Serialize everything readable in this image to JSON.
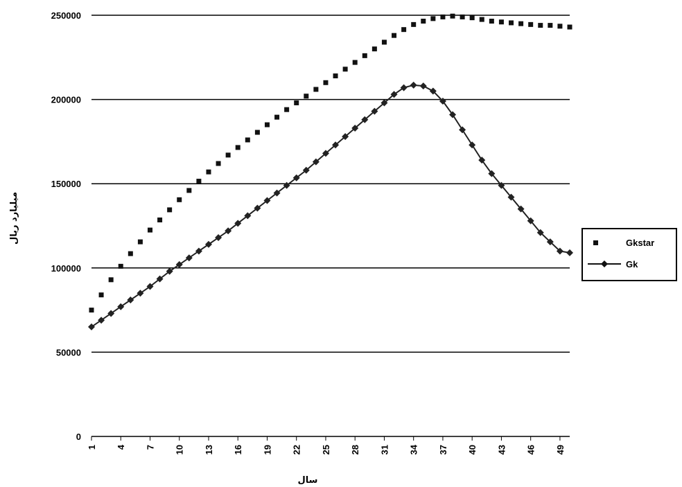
{
  "chart_data": {
    "type": "line",
    "title": "",
    "xlabel": "سال",
    "ylabel": "میلیارد ریال",
    "ylim": [
      0,
      250000
    ],
    "yticks": [
      0,
      50000,
      100000,
      150000,
      200000,
      250000
    ],
    "ytick_labels": [
      "0",
      "50000",
      "100000",
      "150000",
      "200000",
      "250000"
    ],
    "x": [
      1,
      2,
      3,
      4,
      5,
      6,
      7,
      8,
      9,
      10,
      11,
      12,
      13,
      14,
      15,
      16,
      17,
      18,
      19,
      20,
      21,
      22,
      23,
      24,
      25,
      26,
      27,
      28,
      29,
      30,
      31,
      32,
      33,
      34,
      35,
      36,
      37,
      38,
      39,
      40,
      41,
      42,
      43,
      44,
      45,
      46,
      47,
      48,
      49,
      50
    ],
    "xtick_labels": [
      "1",
      "4",
      "7",
      "10",
      "13",
      "16",
      "19",
      "22",
      "25",
      "28",
      "31",
      "34",
      "37",
      "40",
      "43",
      "46",
      "49"
    ],
    "grid": "horizontal",
    "legend_position": "right",
    "series": [
      {
        "name": "Gkstar",
        "marker": "square",
        "line": false,
        "color": "#111111",
        "values": [
          75000,
          84000,
          93000,
          101000,
          108500,
          115500,
          122500,
          128500,
          134500,
          140500,
          146000,
          151500,
          157000,
          162000,
          167000,
          171500,
          176000,
          180500,
          185000,
          189500,
          194000,
          198000,
          202000,
          206000,
          210000,
          214000,
          218000,
          222000,
          226000,
          230000,
          234000,
          238000,
          241500,
          244500,
          246500,
          248000,
          249000,
          249500,
          249000,
          248500,
          247500,
          246500,
          246000,
          245500,
          245000,
          244500,
          244000,
          244000,
          243500,
          243000
        ]
      },
      {
        "name": "Gk",
        "marker": "diamond",
        "line": true,
        "color": "#222222",
        "values": [
          65000,
          69000,
          73000,
          77000,
          81000,
          85000,
          89000,
          93500,
          98000,
          102000,
          106000,
          110000,
          114000,
          118000,
          122000,
          126500,
          131000,
          135500,
          140000,
          144500,
          149000,
          153500,
          158000,
          163000,
          168000,
          173000,
          178000,
          183000,
          188000,
          193000,
          198000,
          203000,
          207000,
          208500,
          208000,
          205000,
          199000,
          191000,
          182000,
          173000,
          164000,
          156000,
          149000,
          142000,
          135000,
          128000,
          121000,
          115500,
          110000,
          109000
        ]
      }
    ]
  }
}
